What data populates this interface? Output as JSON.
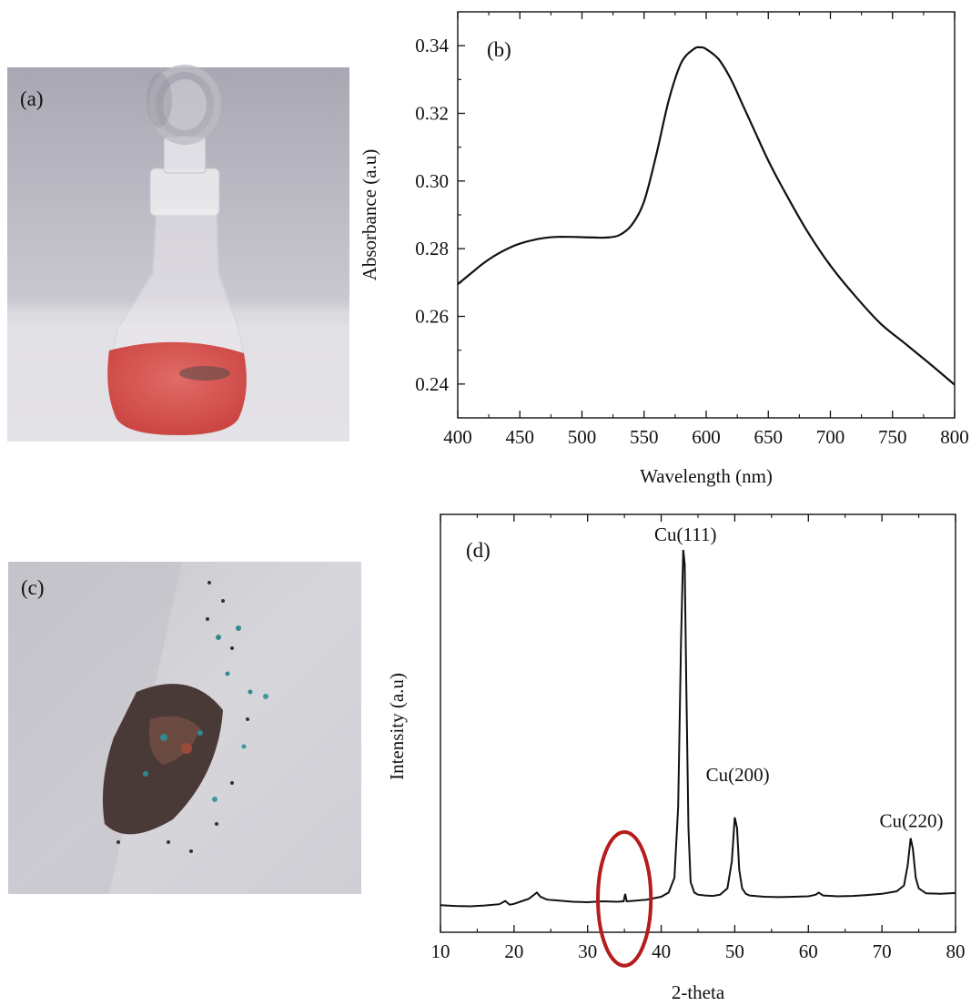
{
  "panels": {
    "a": {
      "label": "(a)"
    },
    "c": {
      "label": "(c)"
    }
  },
  "chart_data": [
    {
      "panel_label": "(b)",
      "type": "line",
      "xlabel": "Wavelength (nm)",
      "ylabel": "Absorbance (a.u)",
      "xlim": [
        400,
        800
      ],
      "ylim": [
        0.23,
        0.35
      ],
      "x_ticks": [
        400,
        450,
        500,
        550,
        600,
        650,
        700,
        750,
        800
      ],
      "y_ticks": [
        0.24,
        0.26,
        0.28,
        0.3,
        0.32,
        0.34
      ],
      "y_tick_labels": [
        "0.24",
        "0.26",
        "0.28",
        "0.30",
        "0.32",
        "0.34"
      ],
      "grid": false,
      "series": [
        {
          "x": [
            400,
            410,
            420,
            430,
            440,
            450,
            460,
            470,
            480,
            490,
            500,
            510,
            520,
            530,
            540,
            550,
            560,
            570,
            580,
            590,
            595,
            600,
            610,
            620,
            630,
            640,
            650,
            660,
            680,
            700,
            720,
            740,
            760,
            780,
            800
          ],
          "y": [
            0.2695,
            0.2725,
            0.2755,
            0.278,
            0.28,
            0.2815,
            0.2825,
            0.2832,
            0.2835,
            0.2835,
            0.2834,
            0.2833,
            0.2833,
            0.284,
            0.287,
            0.294,
            0.308,
            0.324,
            0.335,
            0.339,
            0.3395,
            0.339,
            0.336,
            0.33,
            0.322,
            0.314,
            0.306,
            0.299,
            0.286,
            0.275,
            0.266,
            0.258,
            0.252,
            0.246,
            0.2398
          ],
          "color": "#111111"
        }
      ]
    },
    {
      "panel_label": "(d)",
      "type": "line",
      "xlabel": "2-theta",
      "ylabel": "Intensity (a.u)",
      "xlim": [
        10,
        80
      ],
      "ylim": [
        0,
        1.0
      ],
      "x_ticks": [
        10,
        20,
        30,
        40,
        50,
        60,
        70,
        80
      ],
      "y_ticks": [],
      "grid": false,
      "annotations": [
        {
          "text": "Cu(111)",
          "x": 43.3,
          "y": 0.915
        },
        {
          "text": "Cu(200)",
          "x": 50.4,
          "y": 0.34
        },
        {
          "text": "Cu(220)",
          "x": 74.0,
          "y": 0.23
        }
      ],
      "highlight": {
        "shape": "ellipse",
        "x_center": 35.0,
        "y_center": 0.08,
        "x_radius": 3.6,
        "y_radius": 0.16,
        "color": "#b71c1c"
      },
      "series": [
        {
          "x": [
            10,
            12,
            14,
            16,
            18,
            18.8,
            19.4,
            20,
            21,
            22,
            22.6,
            23.1,
            23.6,
            24.5,
            26,
            28,
            30,
            32,
            34,
            34.9,
            35.1,
            35.3,
            36,
            38,
            40,
            41,
            41.8,
            42.3,
            42.7,
            43.0,
            43.2,
            43.4,
            43.7,
            44.0,
            44.5,
            45,
            46,
            47,
            48,
            49,
            49.6,
            50.0,
            50.3,
            50.6,
            51.0,
            51.5,
            52,
            54,
            56,
            58,
            60,
            61,
            61.4,
            62,
            64,
            66,
            68,
            70,
            72,
            73,
            73.5,
            73.9,
            74.2,
            74.6,
            75.0,
            76,
            78,
            80
          ],
          "y": [
            0.065,
            0.063,
            0.062,
            0.064,
            0.067,
            0.075,
            0.066,
            0.068,
            0.074,
            0.08,
            0.088,
            0.095,
            0.085,
            0.078,
            0.076,
            0.073,
            0.072,
            0.074,
            0.073,
            0.074,
            0.092,
            0.074,
            0.075,
            0.078,
            0.085,
            0.095,
            0.13,
            0.3,
            0.7,
            0.915,
            0.88,
            0.6,
            0.25,
            0.12,
            0.095,
            0.09,
            0.088,
            0.087,
            0.09,
            0.105,
            0.17,
            0.275,
            0.25,
            0.15,
            0.105,
            0.092,
            0.088,
            0.085,
            0.084,
            0.085,
            0.086,
            0.09,
            0.095,
            0.088,
            0.086,
            0.087,
            0.089,
            0.092,
            0.098,
            0.112,
            0.16,
            0.225,
            0.2,
            0.13,
            0.105,
            0.093,
            0.092,
            0.094
          ],
          "color": "#111111"
        }
      ]
    }
  ]
}
